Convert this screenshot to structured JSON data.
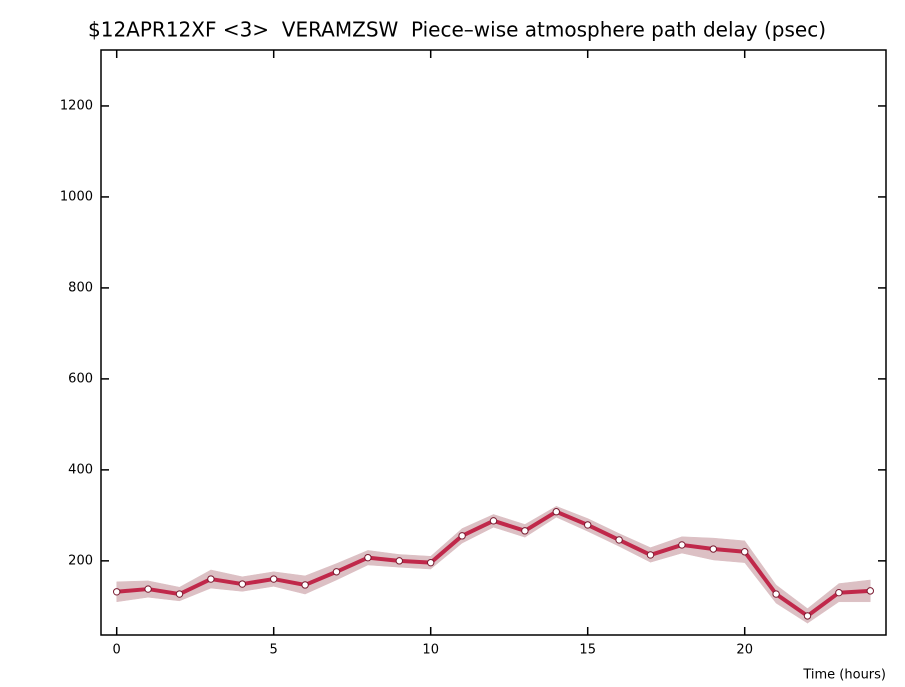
{
  "chart_data": {
    "type": "line",
    "title": "$12APR12XF <3>  VERAMZSW  Piece–wise atmosphere path delay (psec)",
    "xlabel": "Time (hours)",
    "x": [
      0,
      1,
      2,
      3,
      4,
      5,
      6,
      7,
      8,
      9,
      10,
      11,
      12,
      13,
      14,
      15,
      16,
      17,
      18,
      19,
      20,
      21,
      22,
      23,
      24
    ],
    "series": [
      {
        "color": "#c0284a",
        "band_color": "#dcc0c4",
        "values": [
          132,
          138,
          127,
          160,
          149,
          160,
          147,
          176,
          207,
          200,
          196,
          255,
          288,
          266,
          308,
          279,
          246,
          213,
          235,
          226,
          220,
          127,
          79,
          130,
          134
        ],
        "errors": [
          22,
          18,
          15,
          20,
          16,
          16,
          20,
          18,
          16,
          14,
          14,
          16,
          14,
          14,
          12,
          14,
          14,
          16,
          18,
          24,
          24,
          20,
          16,
          20,
          24
        ]
      }
    ],
    "xlim": [
      -0.5,
      24.5
    ],
    "xticks": [
      0,
      5,
      10,
      15,
      20
    ],
    "ylim": [
      37,
      1323
    ],
    "yticks": [
      200,
      400,
      600,
      800,
      1000,
      1200
    ]
  }
}
